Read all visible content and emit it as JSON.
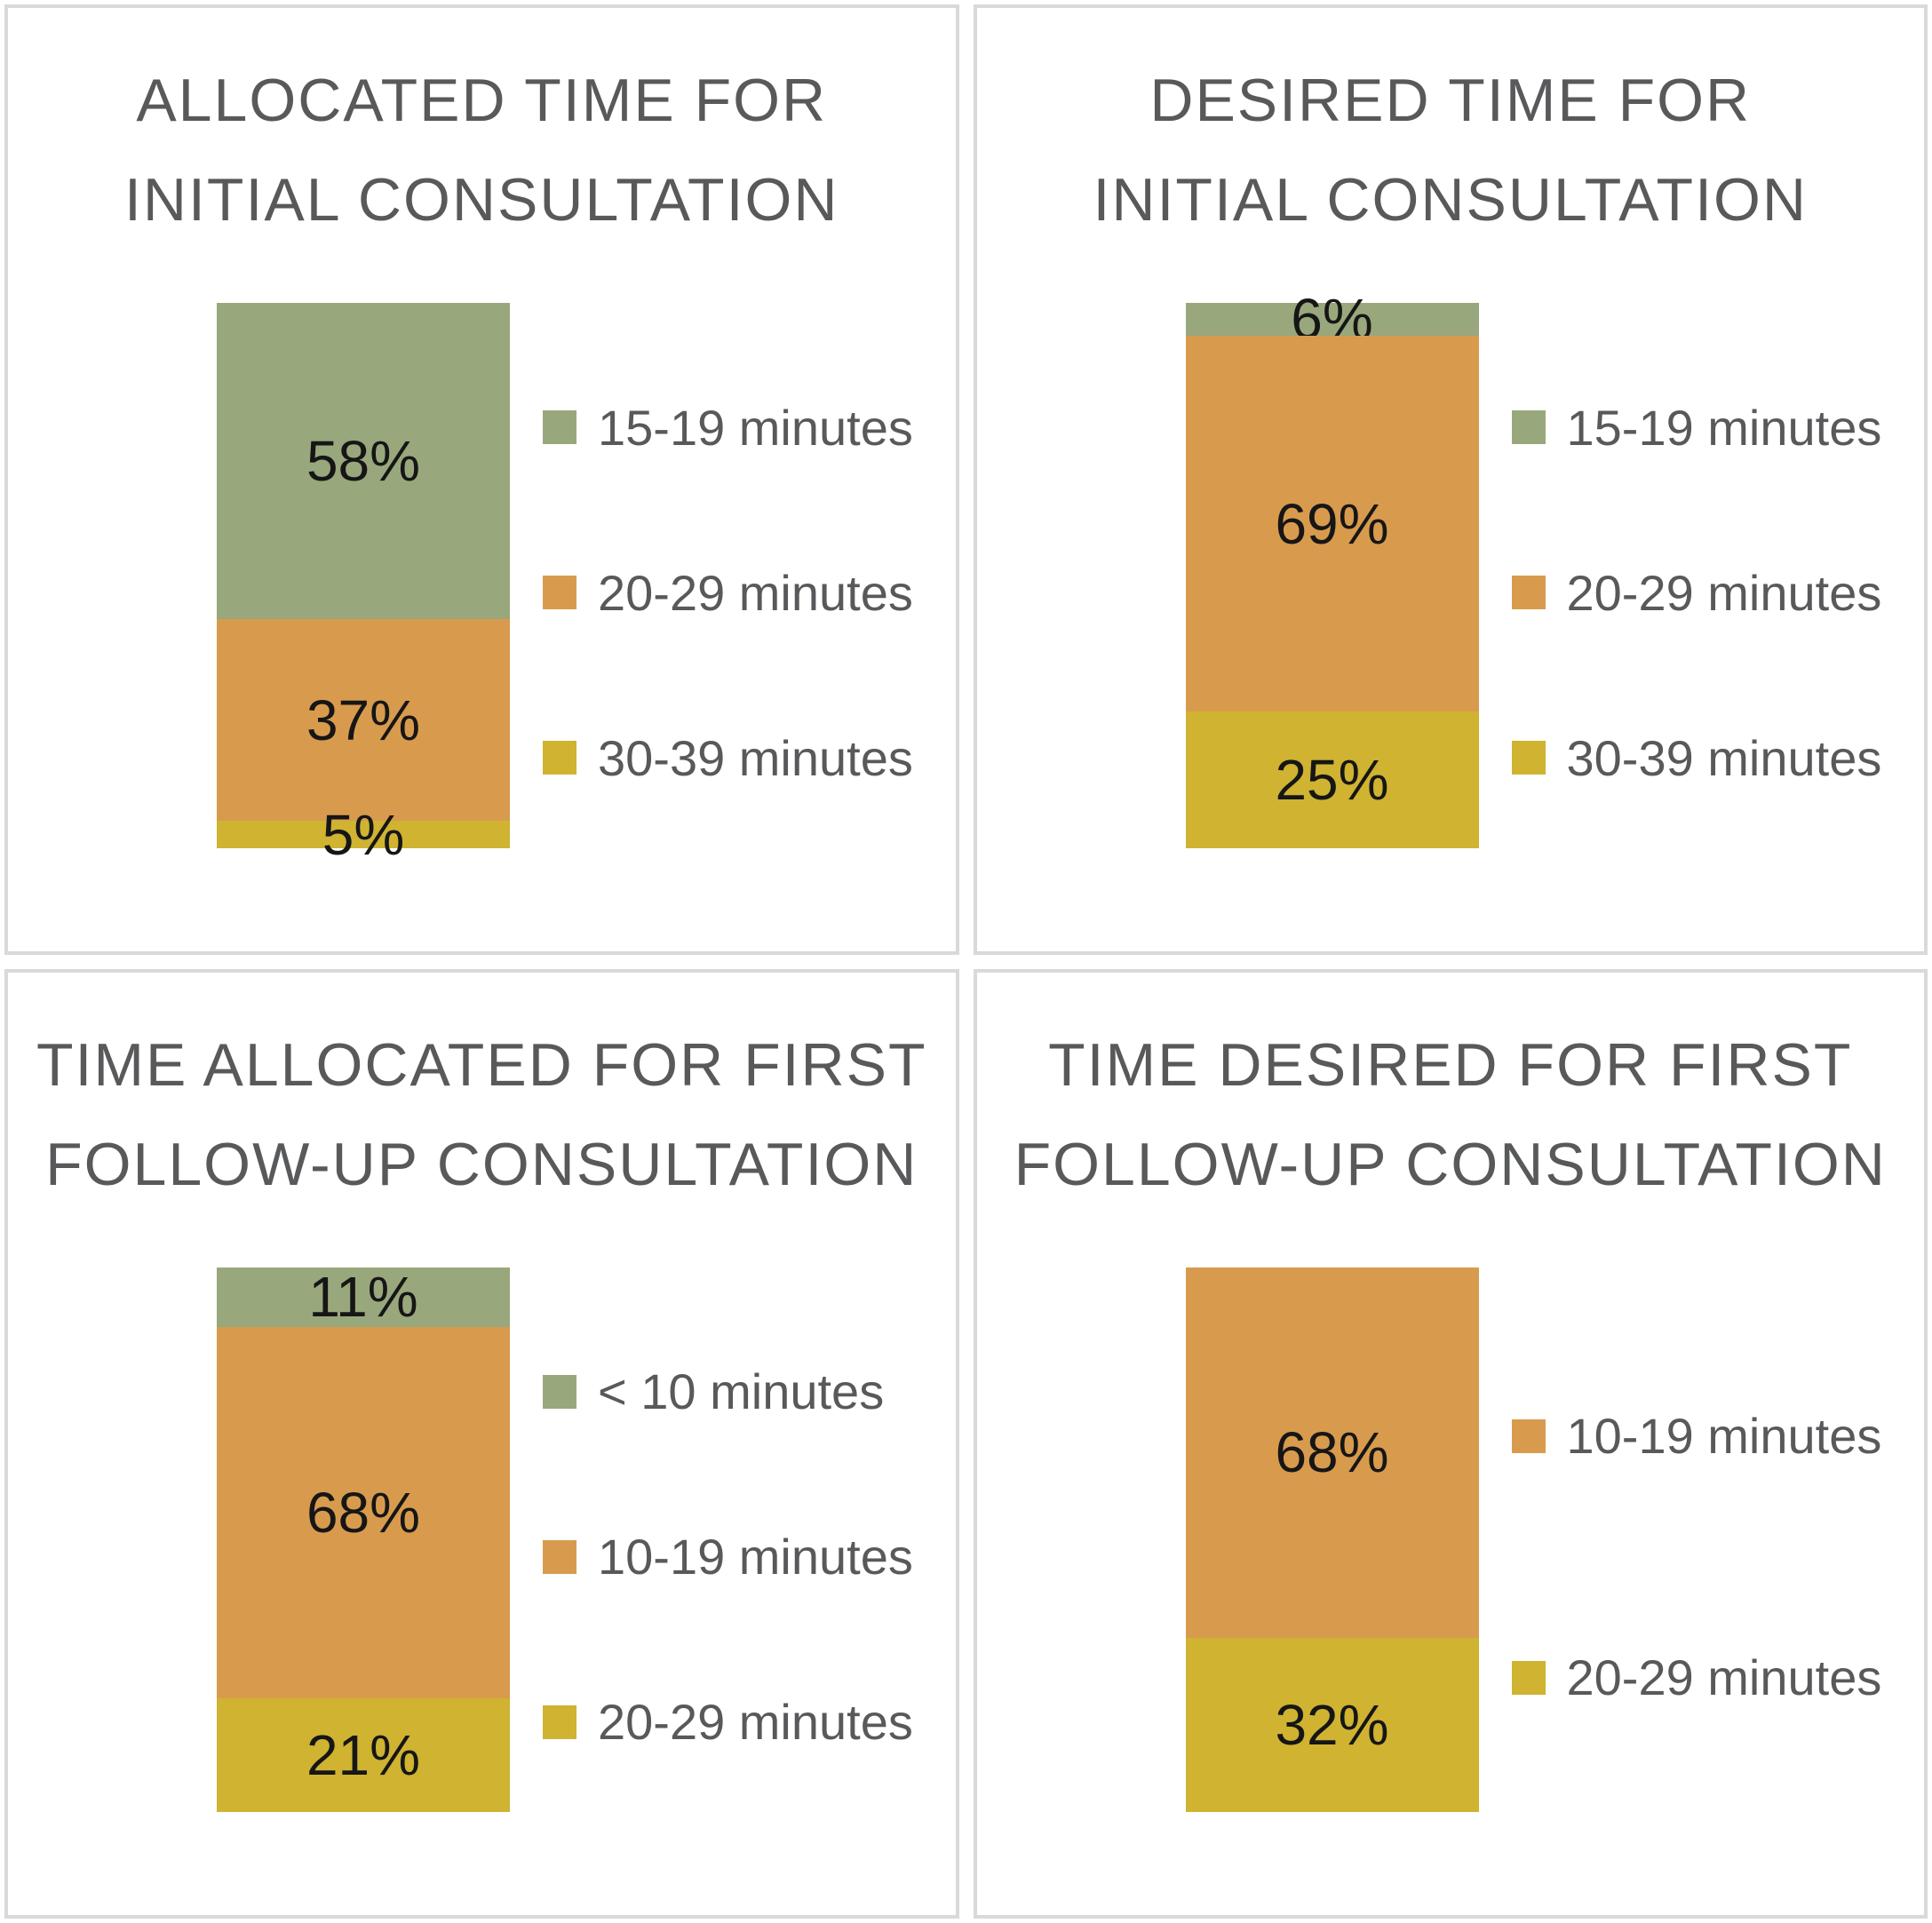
{
  "palette": {
    "green": "#98A87C",
    "orange": "#D89B4D",
    "yellow": "#CFB331"
  },
  "style_colors": {
    "panel_border": "#D9D9D9",
    "title_text": "#58595B",
    "legend_text": "#58595B",
    "value_text": "#161616",
    "background": "#FFFFFF"
  },
  "chart_data": [
    {
      "type": "bar",
      "stacked": true,
      "orientation": "vertical",
      "title": "ALLOCATED TIME FOR INITIAL CONSULTATION",
      "title_lines": [
        "ALLOCATED TIME FOR",
        "INITIAL CONSULTATION"
      ],
      "categories": [
        "15-19 minutes",
        "20-29 minutes",
        "30-39 minutes"
      ],
      "values": [
        58,
        37,
        5
      ],
      "labels": [
        "58%",
        "37%",
        "5%"
      ],
      "colors": [
        "green",
        "orange",
        "yellow"
      ],
      "unit": "%",
      "ylim": [
        0,
        100
      ],
      "legend_position": "right",
      "grid": false
    },
    {
      "type": "bar",
      "stacked": true,
      "orientation": "vertical",
      "title": "DESIRED TIME FOR INITIAL CONSULTATION",
      "title_lines": [
        "DESIRED TIME FOR",
        "INITIAL CONSULTATION"
      ],
      "categories": [
        "15-19 minutes",
        "20-29 minutes",
        "30-39 minutes"
      ],
      "values": [
        6,
        69,
        25
      ],
      "labels": [
        "6%",
        "69%",
        "25%"
      ],
      "colors": [
        "green",
        "orange",
        "yellow"
      ],
      "unit": "%",
      "ylim": [
        0,
        100
      ],
      "legend_position": "right",
      "grid": false
    },
    {
      "type": "bar",
      "stacked": true,
      "orientation": "vertical",
      "title": "TIME ALLOCATED FOR FIRST FOLLOW-UP CONSULTATION",
      "title_lines": [
        "TIME ALLOCATED FOR FIRST",
        "FOLLOW-UP CONSULTATION"
      ],
      "categories": [
        "< 10 minutes",
        "10-19 minutes",
        "20-29 minutes"
      ],
      "values": [
        11,
        68,
        21
      ],
      "labels": [
        "11%",
        "68%",
        "21%"
      ],
      "colors": [
        "green",
        "orange",
        "yellow"
      ],
      "unit": "%",
      "ylim": [
        0,
        100
      ],
      "legend_position": "right",
      "grid": false
    },
    {
      "type": "bar",
      "stacked": true,
      "orientation": "vertical",
      "title": "TIME DESIRED FOR FIRST FOLLOW-UP CONSULTATION",
      "title_lines": [
        "TIME DESIRED FOR FIRST",
        "FOLLOW-UP CONSULTATION"
      ],
      "categories": [
        "10-19 minutes",
        "20-29 minutes"
      ],
      "values": [
        68,
        32
      ],
      "labels": [
        "68%",
        "32%"
      ],
      "colors": [
        "orange",
        "yellow"
      ],
      "unit": "%",
      "ylim": [
        0,
        100
      ],
      "legend_position": "right",
      "grid": false
    }
  ]
}
